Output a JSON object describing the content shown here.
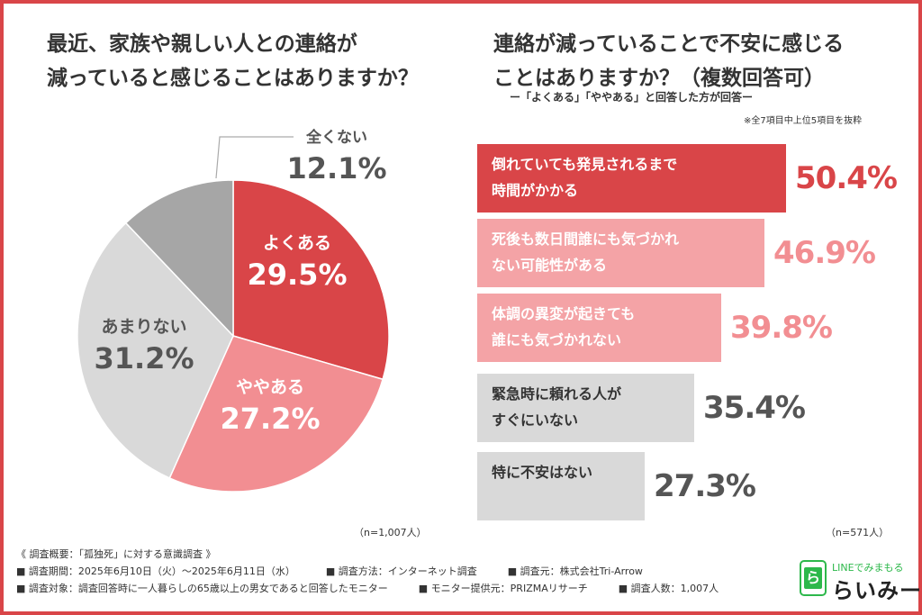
{
  "colors": {
    "frame": "#d94548",
    "yoku": "#d94548",
    "yaya": "#f28e92",
    "amari": "#d9d9d9",
    "mattaku": "#a6a6a6",
    "bar_pink_light": "#f4a3a6",
    "bar_gray": "#d9d9d9",
    "logo_green": "#2db84b"
  },
  "left": {
    "title_line1": "最近、家族や親しい人との連絡が",
    "title_line2": "減っていると感じることはありますか？",
    "n": "（n=1,007人）"
  },
  "right": {
    "title_line1": "連絡が減っていることで不安に感じる",
    "title_line2": "ことはありますか？（複数回答可）",
    "subtitle": "ー「よくある」「ややある」と回答した方が回答ー",
    "excerpt": "※全7項目中上位5項目を抜粋",
    "n": "（n=571人）"
  },
  "chart_data": [
    {
      "type": "pie",
      "title": "最近、家族や親しい人との連絡が減っていると感じることはありますか？",
      "slices": [
        {
          "label": "よくある",
          "value": 29.5,
          "display": "29.5%",
          "color": "#d94548"
        },
        {
          "label": "ややある",
          "value": 27.2,
          "display": "27.2%",
          "color": "#f28e92"
        },
        {
          "label": "あまりない",
          "value": 31.2,
          "display": "31.2%",
          "color": "#d9d9d9"
        },
        {
          "label": "全くない",
          "value": 12.1,
          "display": "12.1%",
          "color": "#a6a6a6"
        }
      ]
    },
    {
      "type": "bar",
      "orientation": "horizontal",
      "title": "連絡が減っていることで不安に感じることはありますか？（複数回答可）",
      "categories": [
        "倒れていても発見されるまで\n時間がかかる",
        "死後も数日間誰にも気づかれ\nない可能性がある",
        "体調の異変が起きても\n誰にも気づかれない",
        "緊急時に頼れる人が\nすぐにいない",
        "特に不安はない"
      ],
      "values": [
        50.4,
        46.9,
        39.8,
        35.4,
        27.3
      ],
      "display": [
        "50.4%",
        "46.9%",
        "39.8%",
        "35.4%",
        "27.3%"
      ],
      "bar_colors": [
        "#d94548",
        "#f4a3a6",
        "#f4a3a6",
        "#d9d9d9",
        "#d9d9d9"
      ],
      "text_colors": [
        "#ffffff",
        "#ffffff",
        "#ffffff",
        "#333333",
        "#333333"
      ],
      "value_colors": [
        "#d94548",
        "#f28e92",
        "#f28e92",
        "#555555",
        "#555555"
      ]
    }
  ],
  "footer": {
    "heading": "《 調査概要：「孤独死」に対する意識調査 》",
    "row1": [
      "■ 調査期間：2025年6月10日（火）〜2025年6月11日（水）",
      "■ 調査方法：インターネット調査",
      "■ 調査元：株式会社Tri-Arrow"
    ],
    "row2": [
      "■ 調査対象：調査回答時に一人暮らしの65歳以上の男女であると回答したモニター",
      "■ モニター提供元：PRIZMAリサーチ",
      "■ 調査人数：1,007人"
    ]
  },
  "logo": {
    "icon_char": "ら",
    "top": "LINEでみまもる",
    "main": "らいみー"
  }
}
